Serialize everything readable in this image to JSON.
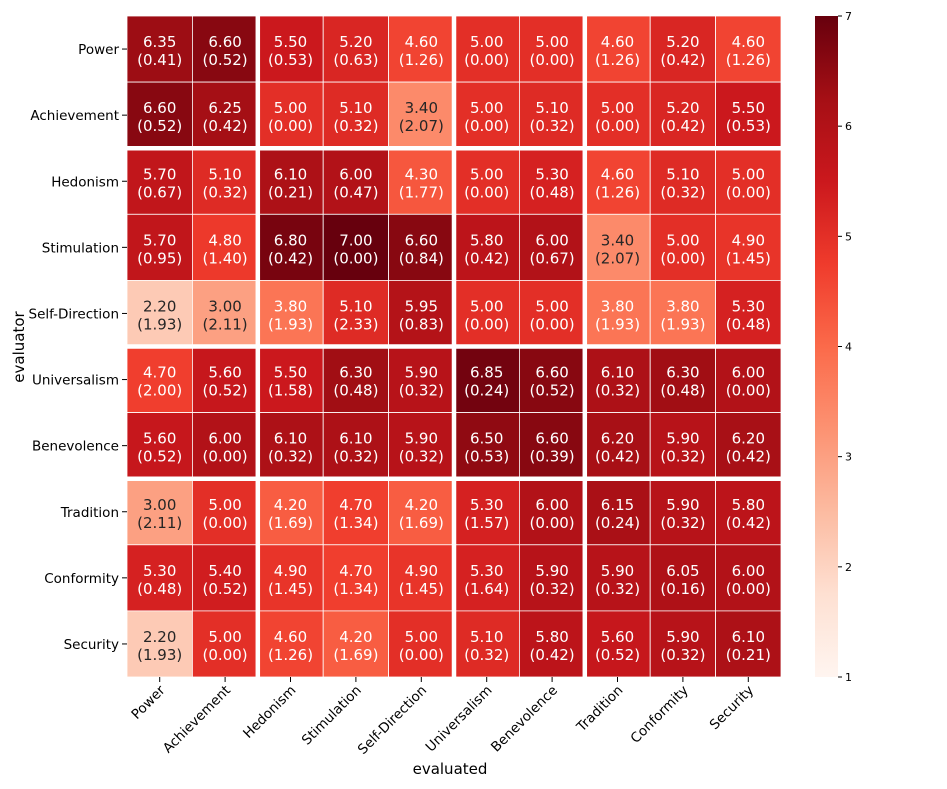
{
  "chart_data": {
    "type": "heatmap",
    "title": "",
    "xlabel": "evaluated",
    "ylabel": "evaluator",
    "x_categories": [
      "Power",
      "Achievement",
      "Hedonism",
      "Stimulation",
      "Self-Direction",
      "Universalism",
      "Benevolence",
      "Tradition",
      "Conformity",
      "Security"
    ],
    "y_categories": [
      "Power",
      "Achievement",
      "Hedonism",
      "Stimulation",
      "Self-Direction",
      "Universalism",
      "Benevolence",
      "Tradition",
      "Conformity",
      "Security"
    ],
    "means": [
      [
        6.35,
        6.6,
        5.5,
        5.2,
        4.6,
        5.0,
        5.0,
        4.6,
        5.2,
        4.6
      ],
      [
        6.6,
        6.25,
        5.0,
        5.1,
        3.4,
        5.0,
        5.1,
        5.0,
        5.2,
        5.5
      ],
      [
        5.7,
        5.1,
        6.1,
        6.0,
        4.3,
        5.0,
        5.3,
        4.6,
        5.1,
        5.0
      ],
      [
        5.7,
        4.8,
        6.8,
        7.0,
        6.6,
        5.8,
        6.0,
        3.4,
        5.0,
        4.9
      ],
      [
        2.2,
        3.0,
        3.8,
        5.1,
        5.95,
        5.0,
        5.0,
        3.8,
        3.8,
        5.3
      ],
      [
        4.7,
        5.6,
        5.5,
        6.3,
        5.9,
        6.85,
        6.6,
        6.1,
        6.3,
        6.0
      ],
      [
        5.6,
        6.0,
        6.1,
        6.1,
        5.9,
        6.5,
        6.6,
        6.2,
        5.9,
        6.2
      ],
      [
        3.0,
        5.0,
        4.2,
        4.7,
        4.2,
        5.3,
        6.0,
        6.15,
        5.9,
        5.8
      ],
      [
        5.3,
        5.4,
        4.9,
        4.7,
        4.9,
        5.3,
        5.9,
        5.9,
        6.05,
        6.0
      ],
      [
        2.2,
        5.0,
        4.6,
        4.2,
        5.0,
        5.1,
        5.8,
        5.6,
        5.9,
        6.1
      ]
    ],
    "stds": [
      [
        0.41,
        0.52,
        0.53,
        0.63,
        1.26,
        0.0,
        0.0,
        1.26,
        0.42,
        1.26
      ],
      [
        0.52,
        0.42,
        0.0,
        0.32,
        2.07,
        0.0,
        0.32,
        0.0,
        0.42,
        0.53
      ],
      [
        0.67,
        0.32,
        0.21,
        0.47,
        1.77,
        0.0,
        0.48,
        1.26,
        0.32,
        0.0
      ],
      [
        0.95,
        1.4,
        0.42,
        0.0,
        0.84,
        0.42,
        0.67,
        2.07,
        0.0,
        1.45
      ],
      [
        1.93,
        2.11,
        1.93,
        2.33,
        0.83,
        0.0,
        0.0,
        1.93,
        1.93,
        0.48
      ],
      [
        2.0,
        0.52,
        1.58,
        0.48,
        0.32,
        0.24,
        0.52,
        0.32,
        0.48,
        0.0
      ],
      [
        0.52,
        0.0,
        0.32,
        0.32,
        0.32,
        0.53,
        0.39,
        0.42,
        0.32,
        0.42
      ],
      [
        2.11,
        0.0,
        1.69,
        1.34,
        1.69,
        1.57,
        0.0,
        0.24,
        0.32,
        0.42
      ],
      [
        0.48,
        0.52,
        1.45,
        1.34,
        1.45,
        1.64,
        0.32,
        0.32,
        0.16,
        0.0
      ],
      [
        1.93,
        0.0,
        1.26,
        1.69,
        0.0,
        0.32,
        0.42,
        0.52,
        0.32,
        0.21
      ]
    ],
    "group_boundaries_after": [
      2,
      5,
      7
    ],
    "colorbar": {
      "min": 1,
      "max": 7,
      "ticks": [
        "1",
        "2",
        "3",
        "4",
        "5",
        "6",
        "7"
      ]
    },
    "colormap": [
      "#fff5f0",
      "#fee0d2",
      "#fcbba1",
      "#fc9272",
      "#fb6a4a",
      "#ef3b2c",
      "#cb181d",
      "#a50f15",
      "#67000d"
    ]
  }
}
